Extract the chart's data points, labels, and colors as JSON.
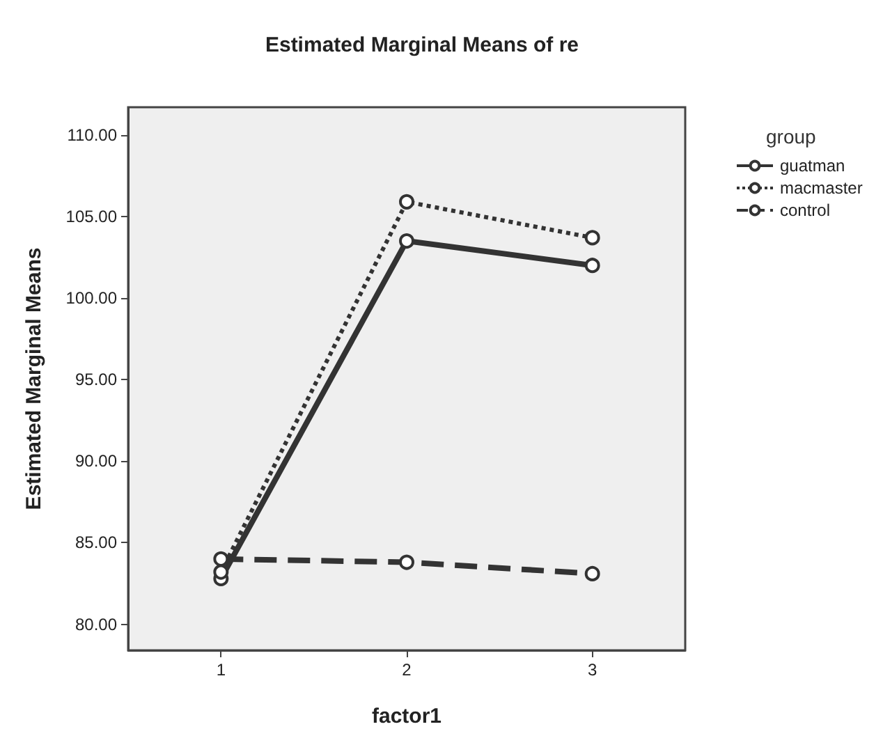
{
  "chart_data": {
    "type": "line",
    "title": "Estimated Marginal Means of re",
    "xlabel": "factor1",
    "ylabel": "Estimated Marginal Means",
    "legend_title": "group",
    "categories": [
      "1",
      "2",
      "3"
    ],
    "series": [
      {
        "name": "guatman",
        "color": "#333333",
        "line_style": "solid",
        "values": [
          82.8,
          103.5,
          102.0
        ]
      },
      {
        "name": "macmaster",
        "color": "#333333",
        "line_style": "dotted",
        "values": [
          83.2,
          105.9,
          103.7
        ]
      },
      {
        "name": "control",
        "color": "#333333",
        "line_style": "dashed",
        "values": [
          84.0,
          83.8,
          83.1
        ]
      }
    ],
    "ylim": [
      78.4,
      111.7
    ],
    "yticks": [
      {
        "value": 80,
        "label": "80.00"
      },
      {
        "value": 85,
        "label": "85.00"
      },
      {
        "value": 90,
        "label": "90.00"
      },
      {
        "value": 95,
        "label": "95.00"
      },
      {
        "value": 100,
        "label": "100.00"
      },
      {
        "value": 105,
        "label": "105.00"
      },
      {
        "value": 110,
        "label": "110.00"
      }
    ],
    "grid": false,
    "legend": "top right",
    "marker": "circle"
  }
}
